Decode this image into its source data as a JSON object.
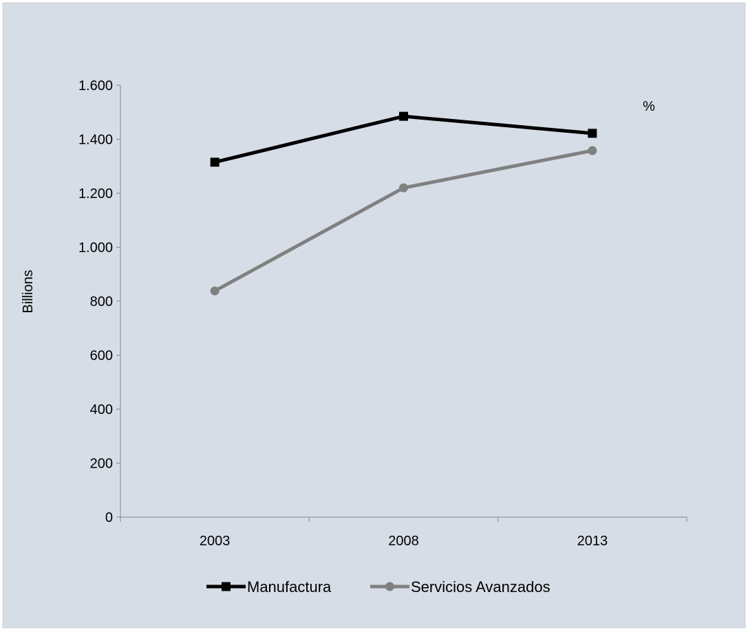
{
  "chart_data": {
    "type": "line",
    "categories": [
      "2003",
      "2008",
      "2013"
    ],
    "series": [
      {
        "name": "Manufactura",
        "values": [
          1315,
          1485,
          1422
        ],
        "color": "#000000",
        "marker": "square"
      },
      {
        "name": "Servicios Avanzados",
        "values": [
          838,
          1220,
          1358
        ],
        "color": "#808080",
        "marker": "circle"
      }
    ],
    "title": "",
    "xlabel": "",
    "ylabel": "Billions",
    "ylim": [
      0,
      1600
    ],
    "y_ticks": [
      {
        "value": 0,
        "label": "0"
      },
      {
        "value": 200,
        "label": "200"
      },
      {
        "value": 400,
        "label": "400"
      },
      {
        "value": 600,
        "label": "600"
      },
      {
        "value": 800,
        "label": "800"
      },
      {
        "value": 1000,
        "label": "1.000"
      },
      {
        "value": 1200,
        "label": "1.200"
      },
      {
        "value": 1400,
        "label": "1.400"
      },
      {
        "value": 1600,
        "label": "1.600"
      }
    ],
    "annotations": [
      {
        "text": "%"
      }
    ],
    "grid": false,
    "legend_position": "bottom",
    "background_color": "#d6dde6"
  }
}
